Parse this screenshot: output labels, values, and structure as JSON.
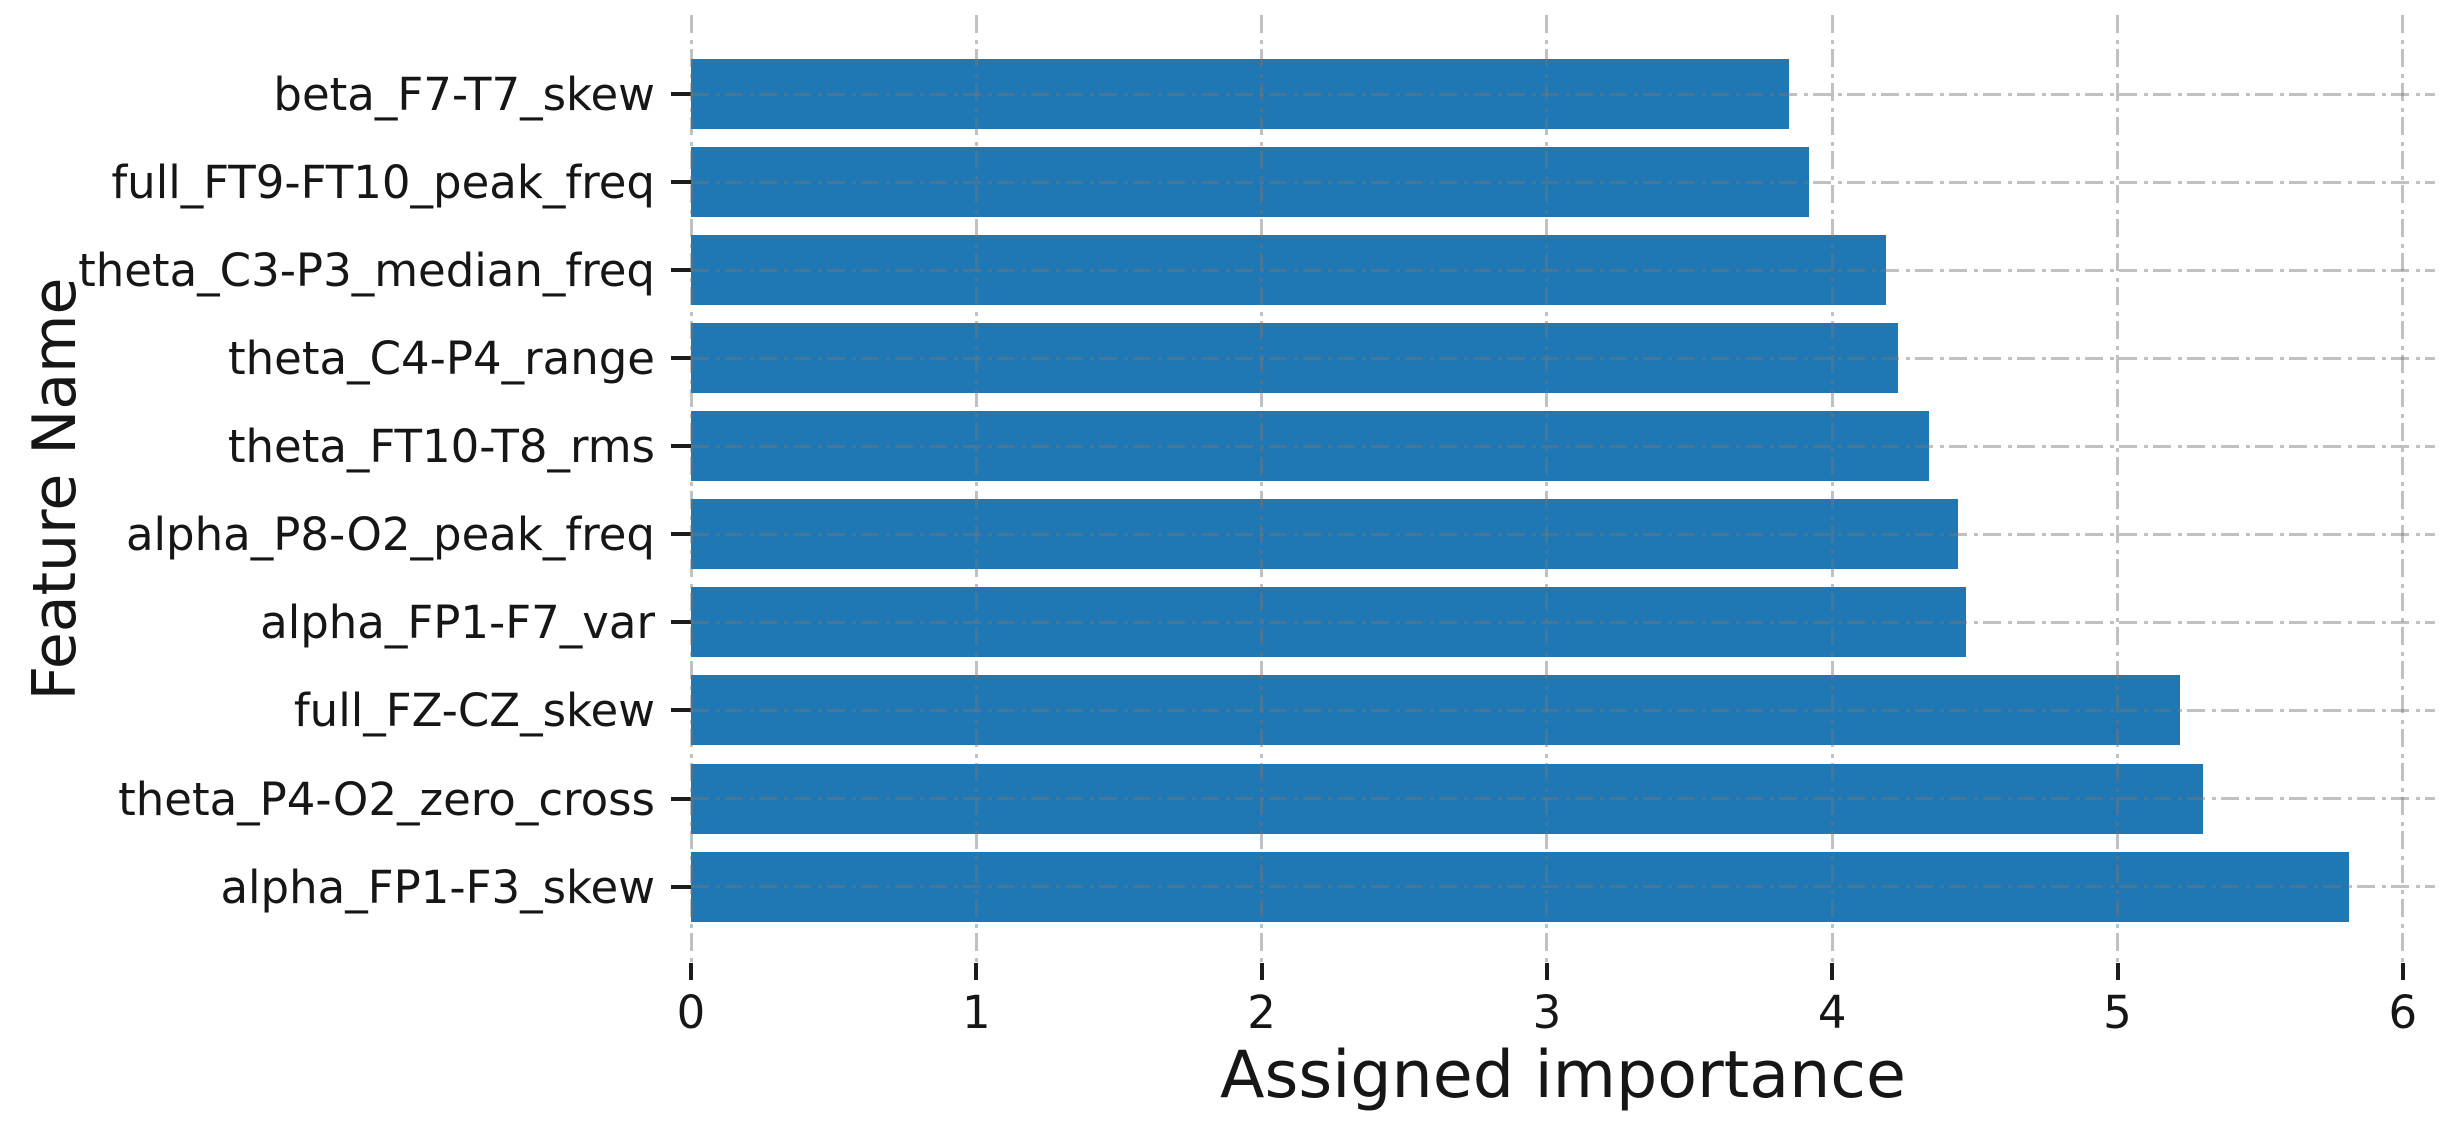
{
  "figure": {
    "background": "#ffffff",
    "text_color": "#161616",
    "tick_color": "#1c1c1c"
  },
  "chart_data": {
    "type": "bar",
    "orientation": "horizontal",
    "title": "",
    "xlabel": "Assigned importance",
    "ylabel": "Feature Name",
    "categories": [
      "beta_F7-T7_skew",
      "full_FT9-FT10_peak_freq",
      "theta_C3-P3_median_freq",
      "theta_C4-P4_range",
      "theta_FT10-T8_rms",
      "alpha_P8-O2_peak_freq",
      "alpha_FP1-F7_var",
      "full_FZ-CZ_skew",
      "theta_P4-O2_zero_cross",
      "alpha_FP1-F3_skew"
    ],
    "values": [
      3.85,
      3.92,
      4.19,
      4.23,
      4.34,
      4.44,
      4.47,
      5.22,
      5.3,
      5.81
    ],
    "xticks": [
      0,
      1,
      2,
      3,
      4,
      5,
      6
    ],
    "xtick_labels": [
      "0",
      "1",
      "2",
      "3",
      "4",
      "5",
      "6"
    ],
    "xlim": [
      0,
      6.11
    ],
    "bar_color": "#1f77b4",
    "grid": {
      "visible": true,
      "axis": "both",
      "linestyle": "dash-dot",
      "color_on_white": "#c2c2c2"
    },
    "legend": {
      "visible": false
    }
  }
}
